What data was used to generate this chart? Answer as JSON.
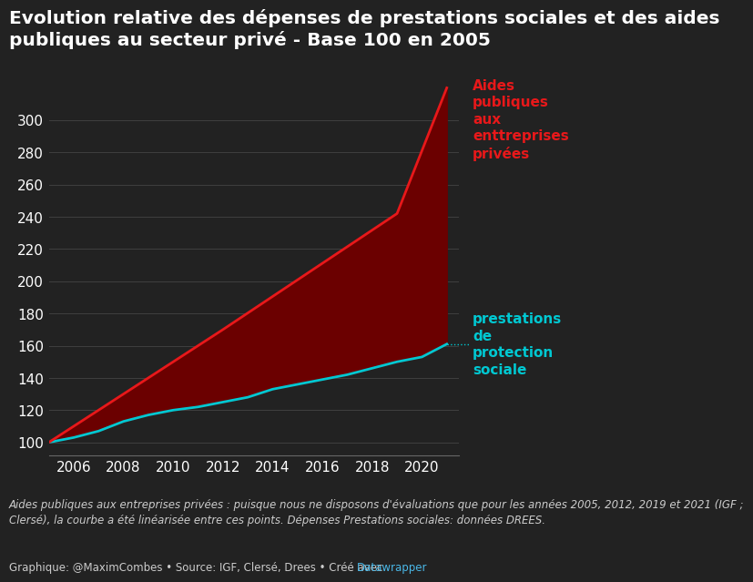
{
  "title": "Evolution relative des dépenses de prestations sociales et des aides\npubliques au secteur privé - Base 100 en 2005",
  "bg_color": "#222222",
  "text_color": "#ffffff",
  "grid_color": "#444444",
  "aides_years": [
    2005,
    2012,
    2019,
    2021
  ],
  "aides_values": [
    100,
    170,
    242,
    320
  ],
  "social_years": [
    2005,
    2006,
    2007,
    2008,
    2009,
    2010,
    2011,
    2012,
    2013,
    2014,
    2015,
    2016,
    2017,
    2018,
    2019,
    2020,
    2021
  ],
  "social_values": [
    100,
    103,
    107,
    113,
    117,
    120,
    122,
    125,
    128,
    133,
    136,
    139,
    142,
    146,
    150,
    153,
    161
  ],
  "aides_color": "#e8181a",
  "social_color": "#00c8d2",
  "fill_color": "#6b0000",
  "label_aides": "Aides\npubliques\naux\nenttreprises\nprivées",
  "label_social": "prestations\nde\nprotection\nsociale",
  "ylim": [
    92,
    330
  ],
  "xlim": [
    2005,
    2021.5
  ],
  "yticks": [
    100,
    120,
    140,
    160,
    180,
    200,
    220,
    240,
    260,
    280,
    300
  ],
  "xticks": [
    2006,
    2008,
    2010,
    2012,
    2014,
    2016,
    2018,
    2020
  ],
  "footnote1": "Aides publiques aux entreprises privées : puisque nous ne disposons d'évaluations que pour les années 2005, 2012, 2019 et 2021 (IGF ;\nClersé), la courbe a été linéarisée entre ces points. Dépenses Prestations sociales: données DREES.",
  "footnote2": "Graphique: @MaximCombes • Source: IGF, Clersé, Drees • Créé avec ",
  "footnote2_link": "Datawrapper",
  "footnote_color": "#cccccc",
  "footnote_link_color": "#4ab8e8",
  "title_fontsize": 14.5,
  "tick_fontsize": 11,
  "label_fontsize": 11,
  "footnote_fontsize": 8.5
}
